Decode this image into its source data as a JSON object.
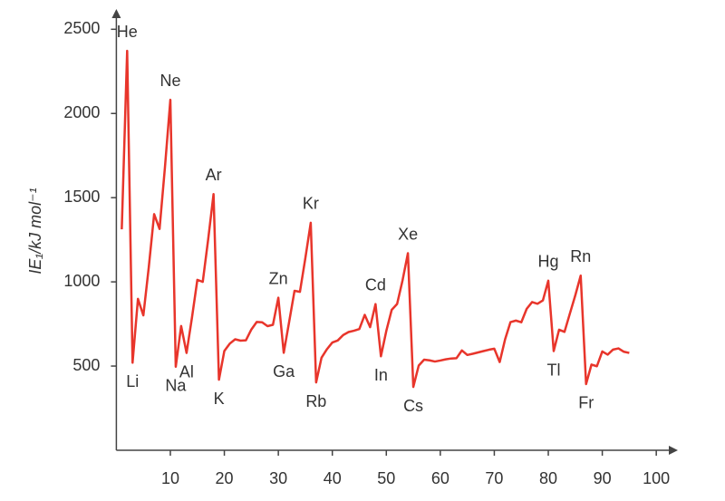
{
  "chart_data": {
    "type": "line",
    "ylabel": "IE₁/kJ mol⁻¹",
    "x": [
      1,
      2,
      3,
      4,
      5,
      6,
      7,
      8,
      9,
      10,
      11,
      12,
      13,
      14,
      15,
      16,
      17,
      18,
      19,
      20,
      21,
      22,
      23,
      24,
      25,
      26,
      27,
      28,
      29,
      30,
      31,
      32,
      33,
      34,
      35,
      36,
      37,
      38,
      39,
      40,
      41,
      42,
      43,
      44,
      45,
      46,
      47,
      48,
      49,
      50,
      51,
      52,
      53,
      54,
      55,
      56,
      57,
      58,
      59,
      60,
      61,
      62,
      63,
      64,
      65,
      66,
      67,
      68,
      69,
      70,
      71,
      72,
      73,
      74,
      75,
      76,
      77,
      78,
      79,
      80,
      81,
      82,
      83,
      84,
      85,
      86,
      87,
      88,
      89,
      90,
      91,
      92,
      93,
      94,
      95
    ],
    "series": [
      {
        "color": "#e8352b",
        "values": [
          1312,
          2372,
          520,
          899,
          801,
          1086,
          1402,
          1314,
          1681,
          2081,
          496,
          738,
          578,
          787,
          1012,
          1000,
          1251,
          1521,
          419,
          590,
          633,
          659,
          651,
          653,
          717,
          762,
          760,
          737,
          745,
          906,
          579,
          762,
          947,
          941,
          1140,
          1351,
          403,
          550,
          600,
          640,
          652,
          684,
          702,
          710,
          720,
          804,
          731,
          868,
          558,
          709,
          834,
          869,
          1008,
          1170,
          376,
          503,
          538,
          534,
          527,
          533,
          540,
          545,
          547,
          593,
          566,
          573,
          581,
          589,
          597,
          603,
          524,
          659,
          761,
          770,
          760,
          840,
          880,
          870,
          890,
          1007,
          589,
          716,
          703,
          812,
          920,
          1037,
          393,
          509,
          499,
          587,
          568,
          598,
          605,
          585,
          578
        ],
        "point_labels": [
          null,
          "He",
          "Li",
          null,
          null,
          null,
          null,
          null,
          null,
          "Ne",
          "Na",
          null,
          "Al",
          null,
          null,
          null,
          null,
          "Ar",
          "K",
          null,
          null,
          null,
          null,
          null,
          null,
          null,
          null,
          null,
          null,
          "Zn",
          "Ga",
          null,
          null,
          null,
          null,
          "Kr",
          "Rb",
          null,
          null,
          null,
          null,
          null,
          null,
          null,
          null,
          null,
          null,
          "Cd",
          "In",
          null,
          null,
          null,
          null,
          "Xe",
          "Cs",
          null,
          null,
          null,
          null,
          null,
          null,
          null,
          null,
          null,
          null,
          null,
          null,
          null,
          null,
          null,
          null,
          null,
          null,
          null,
          null,
          null,
          null,
          null,
          null,
          "Hg",
          "Tl",
          null,
          null,
          null,
          null,
          "Rn",
          "Fr",
          null,
          null,
          null,
          null,
          null,
          null,
          null,
          null
        ]
      }
    ],
    "xlim": [
      0,
      104
    ],
    "ylim": [
      0,
      2620
    ],
    "xticks": [
      10,
      20,
      30,
      40,
      50,
      60,
      70,
      80,
      90,
      100
    ],
    "yticks": [
      500,
      1000,
      1500,
      2000,
      2500
    ]
  }
}
